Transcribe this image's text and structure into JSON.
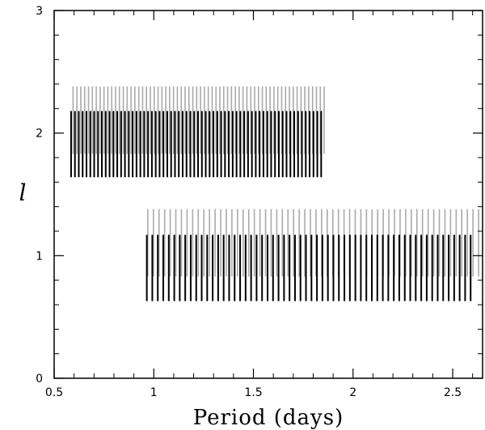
{
  "chart_data": {
    "type": "scatter",
    "title": "",
    "xlabel": "Period (days)",
    "ylabel": "l",
    "xlim": [
      0.5,
      2.65
    ],
    "ylim": [
      0,
      3
    ],
    "x_ticks": [
      0.5,
      1,
      1.5,
      2,
      2.5
    ],
    "x_tick_labels": [
      "0.5",
      "1",
      "1.5",
      "2",
      "2.5"
    ],
    "y_ticks": [
      0,
      1,
      2,
      3
    ],
    "y_tick_labels": [
      "0",
      "1",
      "2",
      "3"
    ],
    "grid": false,
    "series": [
      {
        "l": 2,
        "color": "#000000",
        "y_range": [
          1.64,
          2.18
        ],
        "x_start": 0.585,
        "x_end": 1.84,
        "count": 66
      },
      {
        "l": 2,
        "color": "#aaaaaa",
        "y_range": [
          1.83,
          2.38
        ],
        "x_start": 0.595,
        "x_end": 1.855,
        "count": 66
      },
      {
        "l": 1,
        "color": "#000000",
        "y_range": [
          0.63,
          1.17
        ],
        "x_start": 0.965,
        "x_end": 2.59,
        "count": 60
      },
      {
        "l": 1,
        "color": "#aaaaaa",
        "y_range": [
          0.83,
          1.38
        ],
        "x_start": 0.97,
        "x_end": 2.63,
        "count": 60
      }
    ]
  }
}
